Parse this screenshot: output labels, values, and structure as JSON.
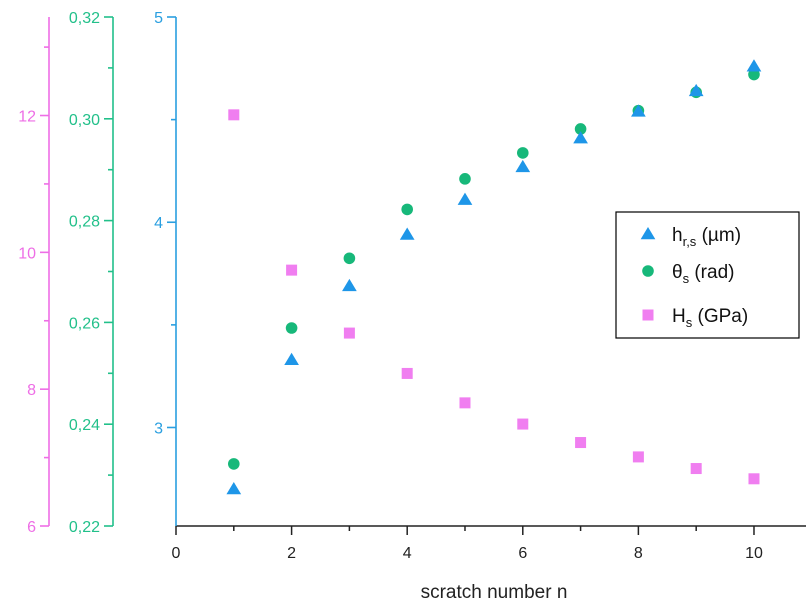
{
  "chart_data": {
    "type": "scatter",
    "x": [
      1,
      2,
      3,
      4,
      5,
      6,
      7,
      8,
      9,
      10
    ],
    "xlabel": "scratch number n",
    "xlim": [
      0,
      10.9
    ],
    "x_ticks": [
      "0",
      "2",
      "4",
      "6",
      "8",
      "10"
    ],
    "x_tick_values": [
      0,
      2,
      4,
      6,
      8,
      10
    ],
    "grid": false,
    "legend_placement": "right",
    "axes": [
      {
        "id": "h",
        "color": "#2a9fe0",
        "ylim": [
          2.52,
          5.0
        ],
        "ticks": [
          "3",
          "4",
          "5"
        ],
        "tick_values": [
          3,
          4,
          5
        ]
      },
      {
        "id": "theta",
        "color": "#22c08a",
        "ylim": [
          0.22,
          0.32
        ],
        "ticks": [
          "0,22",
          "0,24",
          "0,26",
          "0,28",
          "0,30",
          "0,32"
        ],
        "tick_values": [
          0.22,
          0.24,
          0.26,
          0.28,
          0.3,
          0.32
        ]
      },
      {
        "id": "H",
        "color": "#ee6ee6",
        "ylim": [
          6,
          13.44
        ],
        "ticks": [
          "6",
          "8",
          "10",
          "12"
        ],
        "tick_values": [
          6,
          8,
          10,
          12
        ]
      }
    ],
    "series": [
      {
        "name": "h",
        "name_sub": "r,s",
        "unit": " (µm)",
        "axis": "h",
        "marker": "triangle",
        "color": "#1e96e8",
        "values": [
          2.7,
          3.33,
          3.69,
          3.94,
          4.11,
          4.27,
          4.41,
          4.54,
          4.64,
          4.76
        ]
      },
      {
        "name": "θ",
        "name_sub": "s",
        "unit": "  (rad)",
        "axis": "theta",
        "marker": "circle",
        "color": "#17b87a",
        "values": [
          0.2322,
          0.2589,
          0.2726,
          0.2822,
          0.2882,
          0.2933,
          0.298,
          0.3016,
          0.3052,
          0.3087
        ]
      },
      {
        "name": "H",
        "name_sub": "s",
        "unit": " (GPa)",
        "axis": "H",
        "marker": "square",
        "color": "#f07ef0",
        "values": [
          12.01,
          9.74,
          8.82,
          8.23,
          7.8,
          7.49,
          7.22,
          7.01,
          6.84,
          6.69
        ]
      }
    ]
  }
}
